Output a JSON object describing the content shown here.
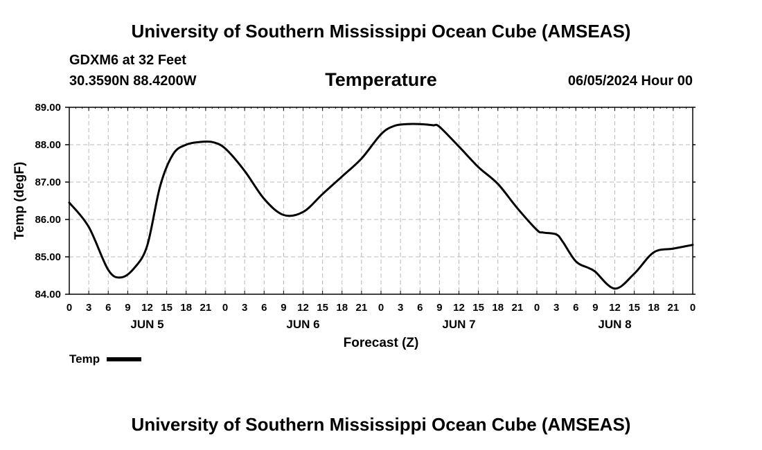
{
  "header": {
    "title": "University of Southern Mississippi Ocean Cube (AMSEAS)",
    "station": "GDXM6 at 32 Feet",
    "coordinates": "30.3590N  88.4200W",
    "datetime": "06/05/2024 Hour 00"
  },
  "footer": {
    "title": "University of Southern Mississippi Ocean Cube (AMSEAS)"
  },
  "legend": {
    "label": "Temp"
  },
  "chart_data": {
    "type": "line",
    "title": "Temperature",
    "xlabel": "Forecast (Z)",
    "ylabel": "Temp (degF)",
    "xlim": [
      0,
      96
    ],
    "ylim": [
      84.0,
      89.0
    ],
    "grid": true,
    "y_ticks": [
      "84.00",
      "85.00",
      "86.00",
      "87.00",
      "88.00",
      "89.00"
    ],
    "x_tick_labels": [
      "0",
      "3",
      "6",
      "9",
      "12",
      "15",
      "18",
      "21",
      "0",
      "3",
      "6",
      "9",
      "12",
      "15",
      "18",
      "21",
      "0",
      "3",
      "6",
      "9",
      "12",
      "15",
      "18",
      "21",
      "0",
      "3",
      "6",
      "9",
      "12",
      "15",
      "18",
      "21",
      "0"
    ],
    "day_labels": [
      {
        "label": "JUN 5",
        "hour": 12
      },
      {
        "label": "JUN 6",
        "hour": 36
      },
      {
        "label": "JUN 7",
        "hour": 60
      },
      {
        "label": "JUN 8",
        "hour": 84
      }
    ],
    "series": [
      {
        "name": "Temp",
        "color": "#000000",
        "x": [
          0,
          3,
          6,
          8,
          10,
          12,
          14,
          16,
          18,
          20,
          22,
          24,
          27,
          30,
          33,
          36,
          39,
          42,
          45,
          48,
          50,
          52,
          54,
          56,
          57,
          60,
          63,
          66,
          69,
          72,
          73,
          75,
          76,
          78,
          80,
          81,
          84,
          87,
          90,
          93,
          96
        ],
        "y": [
          86.45,
          85.8,
          84.65,
          84.45,
          84.7,
          85.3,
          86.9,
          87.75,
          88.0,
          88.07,
          88.07,
          87.9,
          87.3,
          86.55,
          86.12,
          86.2,
          86.68,
          87.15,
          87.63,
          88.28,
          88.5,
          88.55,
          88.55,
          88.52,
          88.48,
          87.95,
          87.4,
          86.95,
          86.3,
          85.72,
          85.65,
          85.6,
          85.4,
          84.88,
          84.7,
          84.6,
          84.15,
          84.55,
          85.12,
          85.22,
          85.32
        ]
      }
    ]
  }
}
